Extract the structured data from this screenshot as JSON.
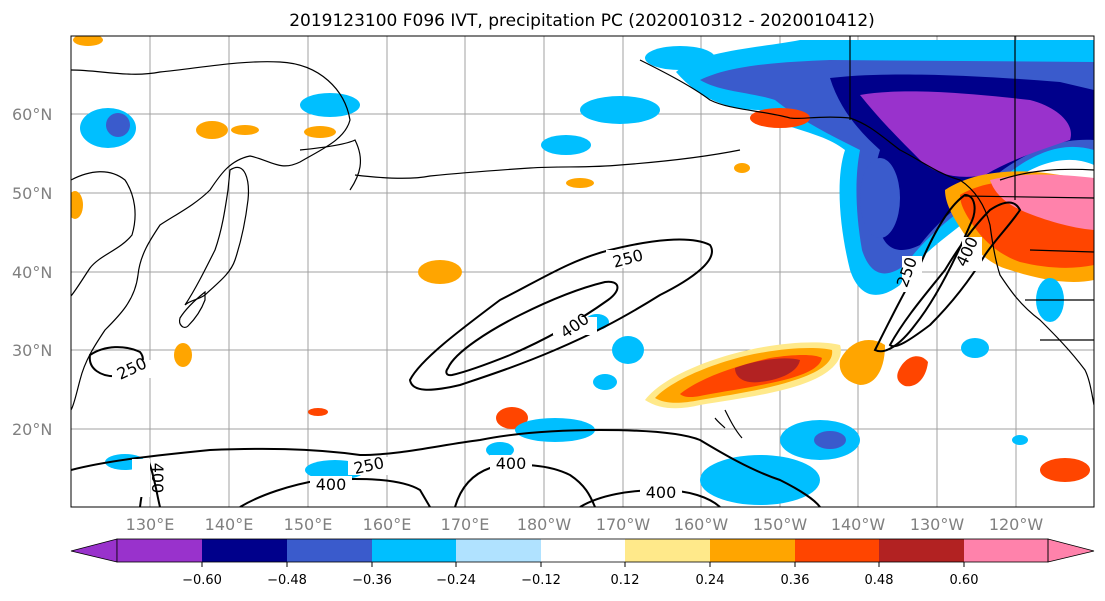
{
  "title": "2019123100 F096 IVT, precipitation PC (2020010312 - 2020010412)",
  "lat_labels": [
    "60°N",
    "50°N",
    "40°N",
    "30°N",
    "20°N"
  ],
  "lon_labels": [
    "130°E",
    "140°E",
    "150°E",
    "160°E",
    "170°E",
    "180°W",
    "170°W",
    "160°W",
    "150°W",
    "140°W",
    "130°W",
    "120°W"
  ],
  "contour_labels": [
    "250",
    "400",
    "250",
    "400",
    "250",
    "400",
    "400",
    "400",
    "250",
    "400"
  ],
  "colorbar": {
    "ticks": [
      "−0.60",
      "−0.48",
      "−0.36",
      "−0.24",
      "−0.12",
      "0.12",
      "0.24",
      "0.36",
      "0.48",
      "0.60"
    ],
    "colors": [
      "#9932cc",
      "#00008b",
      "#3a5bcc",
      "#00bfff",
      "#b0e2ff",
      "#ffffff",
      "#ffe98a",
      "#ffa500",
      "#ff4500",
      "#b22222",
      "#ff82ab"
    ]
  }
}
